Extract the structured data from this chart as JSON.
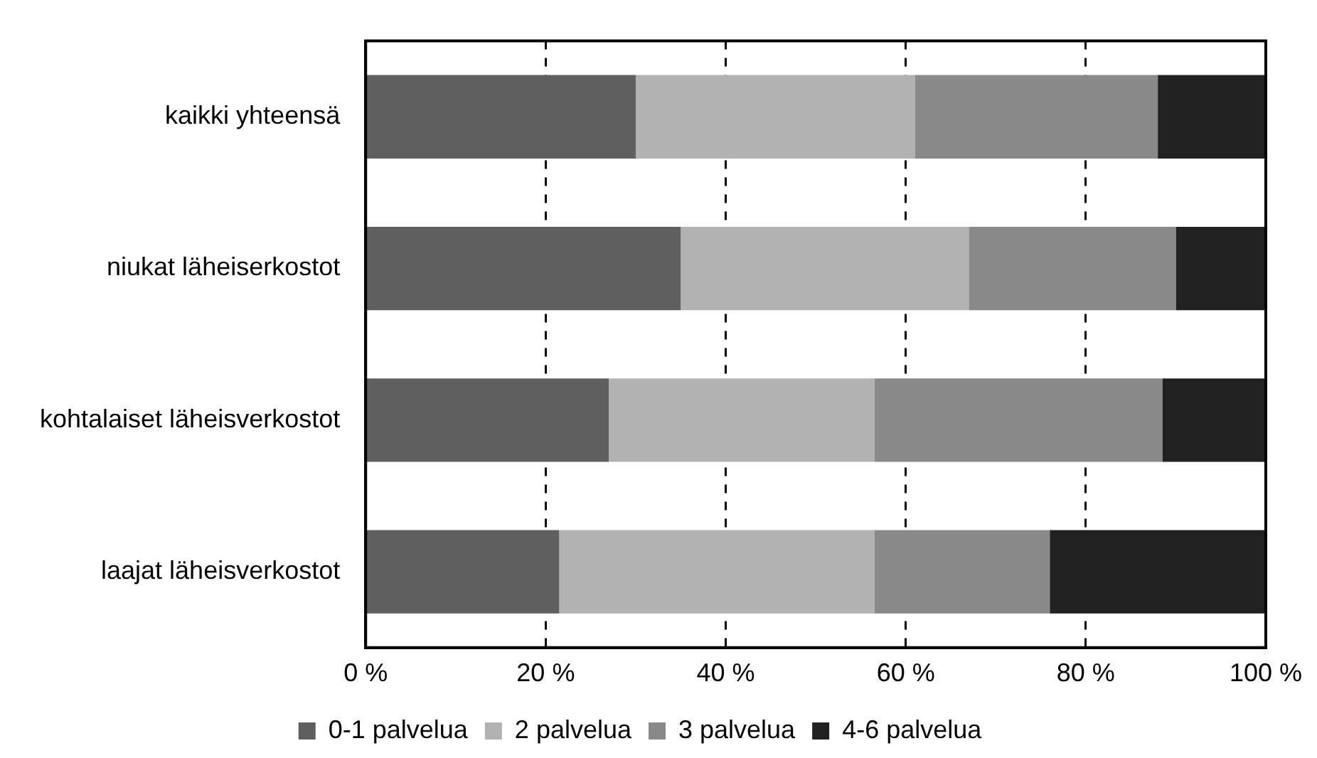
{
  "chart_data": {
    "type": "bar",
    "orientation": "horizontal",
    "stacked": true,
    "categories": [
      "kaikki yhteensä",
      "niukat läheiserkostot",
      "kohtalaiset läheisverkostot",
      "laajat läheisverkostot"
    ],
    "series": [
      {
        "name": "0-1 palvelua",
        "color": "#5f5f5f",
        "values": [
          30,
          35,
          27,
          21.5
        ]
      },
      {
        "name": "2 palvelua",
        "color": "#b2b2b2",
        "values": [
          31,
          32,
          29.5,
          35
        ]
      },
      {
        "name": "3 palvelua",
        "color": "#898989",
        "values": [
          27,
          23,
          32,
          19.5
        ]
      },
      {
        "name": "4-6 palvelua",
        "color": "#212121",
        "values": [
          12,
          10,
          11.5,
          24
        ]
      }
    ],
    "xlim": [
      0,
      100
    ],
    "xticks": [
      {
        "value": 0,
        "label": "0 %"
      },
      {
        "value": 20,
        "label": "20 %"
      },
      {
        "value": 40,
        "label": "40 %"
      },
      {
        "value": 60,
        "label": "60 %"
      },
      {
        "value": 80,
        "label": "80 %"
      },
      {
        "value": 100,
        "label": "100 %"
      }
    ],
    "grid": "x",
    "line_style": "dashed",
    "legend": "bottom"
  }
}
